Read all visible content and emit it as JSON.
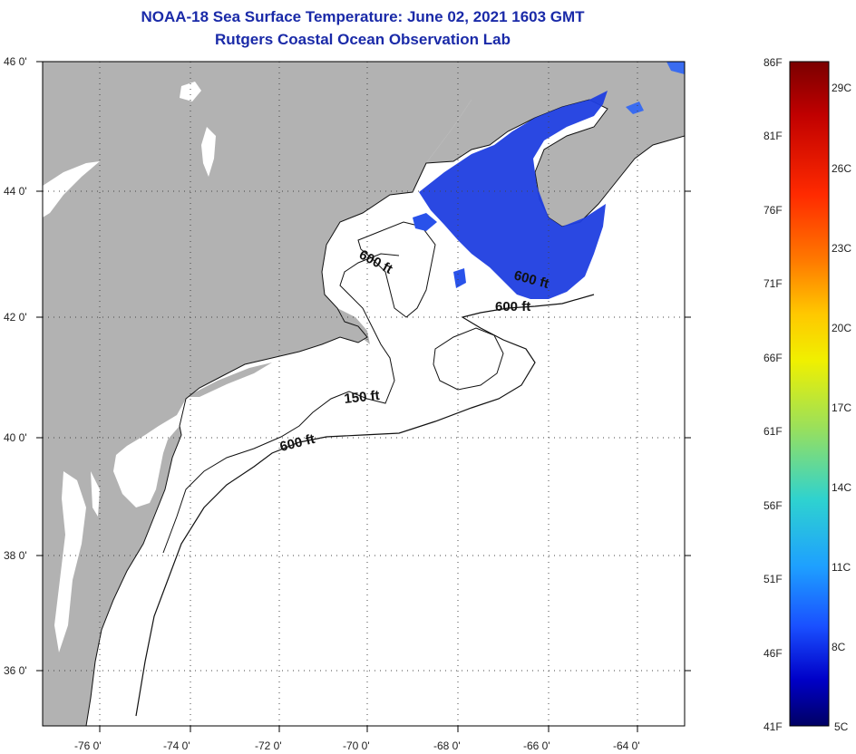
{
  "title": {
    "line1": "NOAA-18 Sea Surface Temperature:  June 02, 2021 1603 GMT",
    "line2": "Rutgers Coastal Ocean Observation Lab"
  },
  "map": {
    "lon_labels": [
      "-76 0'",
      "-74 0'",
      "-72 0'",
      "-70 0'",
      "-68 0'",
      "-66 0'",
      "-64 0'"
    ],
    "lat_labels": [
      "46 0'",
      "44 0'",
      "42 0'",
      "40 0'",
      "38 0'",
      "36 0'"
    ],
    "contour_labels": [
      "600 ft",
      "600 ft",
      "600 ft",
      "150 ft",
      "600 ft"
    ],
    "land_color": "#b2b2b2",
    "water_color": "#ffffff",
    "sst_color": "#1f3ee0"
  },
  "colorbar": {
    "fahrenheit_labels": [
      "86F",
      "81F",
      "76F",
      "71F",
      "66F",
      "61F",
      "56F",
      "51F",
      "46F",
      "41F"
    ],
    "celsius_labels": [
      "29C",
      "26C",
      "23C",
      "20C",
      "17C",
      "14C",
      "11C",
      "8C",
      "5C"
    ],
    "gradient_stops": [
      "#7a0000",
      "#c00000",
      "#ff2a00",
      "#ff7a00",
      "#ffc800",
      "#f0f000",
      "#9be05a",
      "#2ed2d0",
      "#1ea0ff",
      "#1a50ff",
      "#0000c8",
      "#000064"
    ]
  }
}
